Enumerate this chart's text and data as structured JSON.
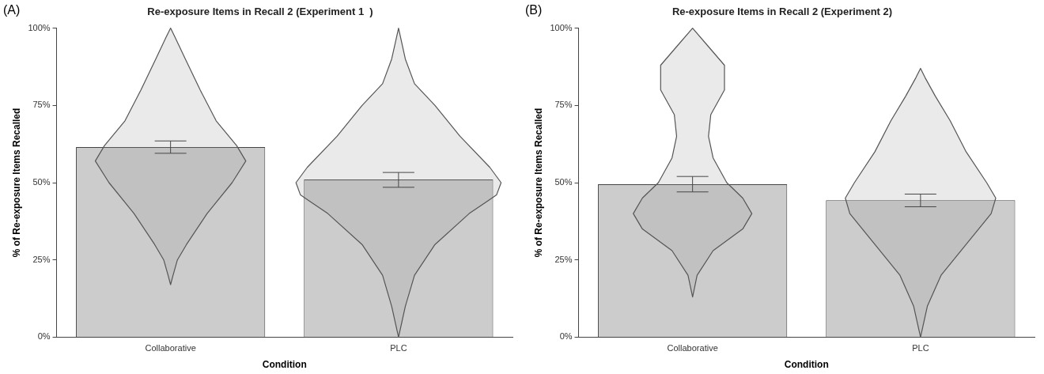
{
  "chart_data": [
    {
      "type": "bar",
      "title": "Re-exposure Items in Recall 2 (Experiment 1  )",
      "xlabel": "Condition",
      "ylabel": "% of Re-exposure Items Recalled",
      "annotations": [
        "(A)"
      ],
      "categories": [
        "Collaborative",
        "PLC"
      ],
      "values": [
        61.5,
        51
      ],
      "errors": [
        [
          59.5,
          63.5
        ],
        [
          48.5,
          53.3
        ]
      ],
      "color": "#cccccc",
      "ylim": [
        0,
        100
      ],
      "yticks": [
        {
          "value": 0,
          "label": "0%"
        },
        {
          "value": 25,
          "label": "25%"
        },
        {
          "value": 50,
          "label": "50%"
        },
        {
          "value": 75,
          "label": "75%"
        },
        {
          "value": 100,
          "label": "100%"
        }
      ],
      "grid": false,
      "legend": false
    },
    {
      "type": "bar",
      "title": "Re-exposure Items in Recall 2 (Experiment 2)",
      "xlabel": "Condition",
      "ylabel": "% of Re-exposure Items Recalled",
      "annotations": [
        "(B)"
      ],
      "categories": [
        "Collaborative",
        "PLC"
      ],
      "values": [
        49.5,
        44.3
      ],
      "errors": [
        [
          47,
          52
        ],
        [
          42.2,
          46.3
        ]
      ],
      "color": "#cccccc",
      "ylim": [
        0,
        100
      ],
      "yticks": [
        {
          "value": 0,
          "label": "0%"
        },
        {
          "value": 25,
          "label": "25%"
        },
        {
          "value": 50,
          "label": "50%"
        },
        {
          "value": 75,
          "label": "75%"
        },
        {
          "value": 100,
          "label": "100%"
        }
      ],
      "grid": false,
      "legend": false
    }
  ]
}
